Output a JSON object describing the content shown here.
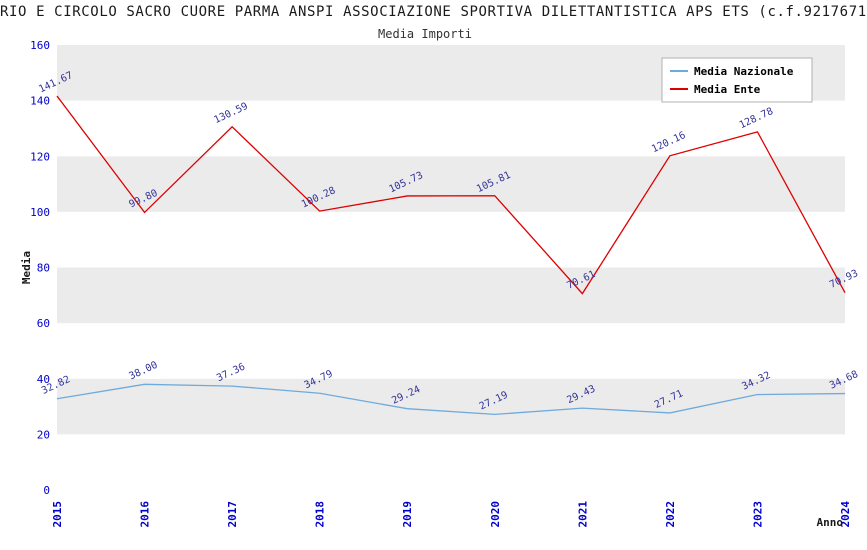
{
  "chart_data": {
    "type": "line",
    "title": "RIO E CIRCOLO SACRO CUORE PARMA ANSPI ASSOCIAZIONE SPORTIVA DILETTANTISTICA APS ETS (c.f.9217671",
    "subtitle": "Media Importi",
    "xlabel": "Anno",
    "ylabel": "Media",
    "x": [
      2015,
      2016,
      2017,
      2018,
      2019,
      2020,
      2021,
      2022,
      2023,
      2024
    ],
    "ylim": [
      0,
      160
    ],
    "ytick_step": 20,
    "legend_position": "top-right",
    "grid": "alternating-bands",
    "series": [
      {
        "name": "Media Nazionale",
        "color": "#6FAADC",
        "values": [
          32.82,
          38.0,
          37.36,
          34.79,
          29.24,
          27.19,
          29.43,
          27.71,
          34.32,
          34.68
        ]
      },
      {
        "name": "Media Ente",
        "color": "#DD0000",
        "values": [
          141.67,
          99.8,
          130.59,
          100.28,
          105.73,
          105.81,
          70.61,
          120.16,
          128.78,
          70.93
        ]
      }
    ],
    "colors": {
      "band": "#EBEBEB",
      "axis_text": "#0000CC",
      "value_label": "#333399",
      "text": "#1a1a1a",
      "legend_border": "#B0B0B0"
    }
  }
}
